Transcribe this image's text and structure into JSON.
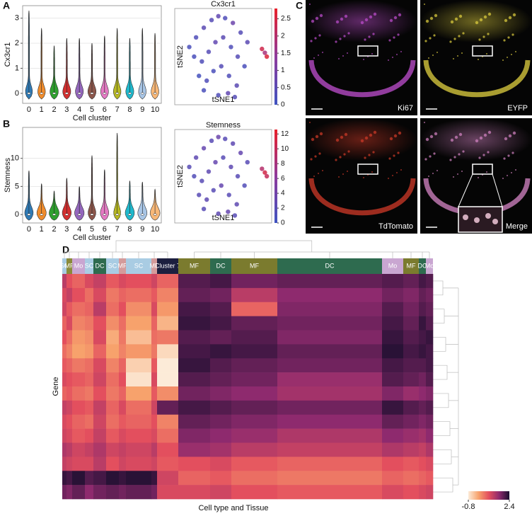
{
  "panel_labels": [
    "A",
    "B",
    "C",
    "D"
  ],
  "chart_data": [
    {
      "type": "violin",
      "ylabel": "Cx3cr1",
      "xlabel": "Cell cluster",
      "categories": [
        "0",
        "1",
        "2",
        "3",
        "4",
        "5",
        "6",
        "7",
        "8",
        "9",
        "10"
      ],
      "values": [
        3.3,
        2.6,
        1.9,
        2.2,
        2.2,
        2.0,
        2.3,
        2.6,
        2.2,
        2.6,
        2.4
      ],
      "colors": [
        "#2f7ab5",
        "#f08c2c",
        "#2fa02f",
        "#d22f2f",
        "#9467bd",
        "#8c564b",
        "#e47ac3",
        "#b7b823",
        "#1fb8cc",
        "#a9c6e6",
        "#f8b878"
      ],
      "ylim": [
        -0.4,
        3.5
      ],
      "yticks": [
        0,
        1,
        2,
        3
      ],
      "grid": true
    },
    {
      "type": "scatter",
      "title": "Cx3cr1",
      "xlabel": "tSNE1",
      "ylabel": "tSNE2",
      "x": [
        15,
        22,
        30,
        38,
        45,
        52,
        60,
        68,
        75,
        20,
        28,
        35,
        42,
        50,
        58,
        65,
        72,
        25,
        33,
        40,
        48,
        56,
        64,
        30,
        45,
        55,
        62,
        90,
        93,
        95
      ],
      "y": [
        60,
        70,
        80,
        88,
        92,
        90,
        85,
        75,
        65,
        50,
        45,
        55,
        65,
        70,
        60,
        50,
        40,
        30,
        25,
        35,
        40,
        30,
        20,
        15,
        10,
        12,
        8,
        58,
        54,
        50
      ],
      "values": [
        0.2,
        0.3,
        0.5,
        0.4,
        0.6,
        0.3,
        0.8,
        0.4,
        0.5,
        0.2,
        0.3,
        0.4,
        0.6,
        0.5,
        0.3,
        0.4,
        0.2,
        0.1,
        0.3,
        0.2,
        0.4,
        0.3,
        0.5,
        0.2,
        0.3,
        0.6,
        0.4,
        2.4,
        1.8,
        2.6
      ],
      "xlim": [
        0,
        100
      ],
      "ylim": [
        0,
        100
      ],
      "clim": [
        0,
        2.8
      ],
      "colorbar_ticks": [
        0,
        0.5,
        1,
        1.5,
        2,
        2.5
      ],
      "colormap": [
        "#3f53c0",
        "#8e3a9c",
        "#e8202a"
      ]
    },
    {
      "type": "violin",
      "ylabel": "Stemness",
      "xlabel": "Cell cluster",
      "categories": [
        "0",
        "1",
        "2",
        "3",
        "4",
        "5",
        "6",
        "7",
        "8",
        "9",
        "10"
      ],
      "values": [
        7.8,
        5.5,
        4.2,
        6.5,
        5.0,
        10.5,
        8.0,
        14.5,
        6.0,
        5.8,
        4.5
      ],
      "colors": [
        "#2f7ab5",
        "#f08c2c",
        "#2fa02f",
        "#d22f2f",
        "#9467bd",
        "#8c564b",
        "#e47ac3",
        "#b7b823",
        "#1fb8cc",
        "#a9c6e6",
        "#f8b878"
      ],
      "ylim": [
        -1.5,
        15.5
      ],
      "yticks": [
        0,
        5,
        10
      ],
      "grid": true
    },
    {
      "type": "scatter",
      "title": "Stemness",
      "xlabel": "tSNE1",
      "ylabel": "tSNE2",
      "x": [
        15,
        22,
        30,
        38,
        45,
        52,
        60,
        68,
        75,
        20,
        28,
        35,
        42,
        50,
        58,
        65,
        72,
        25,
        33,
        40,
        48,
        56,
        64,
        30,
        45,
        55,
        62,
        90,
        93,
        95
      ],
      "y": [
        60,
        70,
        80,
        88,
        92,
        90,
        85,
        75,
        65,
        50,
        45,
        55,
        65,
        70,
        60,
        50,
        40,
        30,
        25,
        35,
        40,
        30,
        20,
        15,
        10,
        12,
        8,
        58,
        54,
        50
      ],
      "values": [
        2,
        2.5,
        3,
        2,
        3.5,
        2,
        2.5,
        3,
        2,
        1.5,
        2,
        2.5,
        3,
        2,
        2.5,
        2,
        1.5,
        2,
        2.5,
        2,
        3,
        2,
        2.5,
        2,
        2.5,
        3,
        2,
        9,
        11,
        10
      ],
      "xlim": [
        0,
        100
      ],
      "ylim": [
        0,
        100
      ],
      "clim": [
        0,
        12.6
      ],
      "colorbar_ticks": [
        0,
        2,
        4,
        6,
        8,
        10,
        12
      ],
      "colormap": [
        "#3f53c0",
        "#8e3a9c",
        "#e8202a"
      ]
    },
    {
      "type": "heatmap",
      "xlabel": "Cell type and Tissue",
      "ylabel": "Gene",
      "groups": [
        {
          "label": "SC",
          "color": "#a9cce3"
        },
        {
          "label": "MF",
          "color": "#8a8a3a"
        },
        {
          "label": "Mo",
          "color": "#c9a6d1"
        },
        {
          "label": "SC",
          "color": "#a9cce3"
        },
        {
          "label": "DC",
          "color": "#2e6b4f"
        },
        {
          "label": "SC",
          "color": "#a9cce3"
        },
        {
          "label": "MF",
          "color": "#d49b9b"
        },
        {
          "label": "SC",
          "color": "#a9cce3"
        },
        {
          "label": "MF",
          "color": "#d49b9b"
        },
        {
          "label": "Cluster 7",
          "color": "#1c1f3f"
        },
        {
          "label": "MF",
          "color": "#7b7b2e"
        },
        {
          "label": "DC",
          "color": "#2e6b4f"
        },
        {
          "label": "MF",
          "color": "#7b7b2e"
        },
        {
          "label": "DC",
          "color": "#2e6b4f"
        },
        {
          "label": "Mo",
          "color": "#c9a6d1"
        },
        {
          "label": "MF",
          "color": "#7b7b2e"
        },
        {
          "label": "DC",
          "color": "#2e6b4f"
        },
        {
          "label": "Mo",
          "color": "#c9a6d1"
        }
      ],
      "values": [
        [
          1.2,
          0.8,
          0.6,
          0.9,
          1.1,
          0.7,
          0.9,
          0.8,
          1.0,
          0.6,
          2.0,
          2.1,
          1.8,
          1.9,
          2.0,
          1.9,
          2.1,
          2.0
        ],
        [
          0.9,
          1.1,
          0.8,
          0.5,
          0.9,
          0.4,
          0.6,
          0.5,
          0.7,
          0.3,
          1.9,
          1.8,
          1.2,
          1.6,
          1.8,
          1.7,
          1.9,
          1.8
        ],
        [
          1.0,
          0.7,
          0.5,
          0.6,
          1.2,
          0.5,
          0.8,
          0.2,
          0.9,
          0.1,
          2.1,
          2.0,
          0.6,
          1.7,
          2.0,
          1.8,
          2.0,
          1.9
        ],
        [
          0.6,
          0.9,
          0.3,
          0.4,
          0.8,
          0.2,
          0.5,
          0.0,
          0.6,
          -0.2,
          2.2,
          2.1,
          1.9,
          1.8,
          2.1,
          1.9,
          2.2,
          2.0
        ],
        [
          0.8,
          0.5,
          0.1,
          0.2,
          0.9,
          -0.1,
          0.4,
          -0.3,
          0.5,
          0.4,
          2.0,
          1.9,
          2.0,
          1.7,
          2.2,
          2.0,
          2.1,
          2.2
        ],
        [
          0.5,
          0.3,
          0.0,
          0.1,
          0.6,
          0.0,
          0.3,
          0.1,
          0.4,
          -0.6,
          2.1,
          2.2,
          2.1,
          1.9,
          2.3,
          2.1,
          2.2,
          2.1
        ],
        [
          0.7,
          0.6,
          0.4,
          0.5,
          0.9,
          0.3,
          0.6,
          -0.5,
          0.7,
          -0.8,
          2.2,
          2.0,
          1.9,
          1.8,
          2.1,
          2.0,
          2.0,
          2.1
        ],
        [
          0.9,
          0.8,
          0.7,
          0.6,
          1.0,
          0.5,
          0.8,
          -0.7,
          0.9,
          -0.8,
          2.0,
          1.9,
          1.8,
          1.5,
          2.0,
          1.9,
          1.8,
          2.0
        ],
        [
          0.6,
          0.7,
          0.5,
          0.4,
          0.8,
          0.4,
          0.6,
          0.0,
          0.7,
          0.2,
          1.8,
          1.7,
          1.6,
          1.4,
          1.7,
          1.5,
          1.6,
          1.7
        ],
        [
          1.1,
          1.0,
          0.8,
          0.7,
          1.1,
          0.6,
          0.9,
          0.5,
          1.0,
          1.9,
          2.1,
          2.0,
          1.9,
          1.8,
          2.2,
          2.0,
          1.9,
          2.0
        ],
        [
          0.9,
          0.8,
          0.6,
          0.5,
          1.0,
          0.5,
          0.7,
          0.6,
          0.8,
          0.3,
          1.9,
          1.8,
          1.7,
          1.6,
          1.9,
          1.8,
          1.7,
          1.8
        ],
        [
          1.0,
          0.9,
          0.7,
          0.8,
          1.1,
          0.7,
          0.9,
          0.8,
          0.9,
          0.5,
          1.7,
          1.6,
          1.5,
          1.3,
          1.6,
          1.5,
          1.4,
          1.6
        ],
        [
          1.3,
          1.2,
          1.0,
          1.1,
          1.3,
          1.0,
          1.1,
          1.0,
          1.2,
          0.8,
          1.5,
          1.4,
          1.2,
          1.1,
          1.3,
          1.2,
          1.1,
          1.3
        ],
        [
          1.1,
          1.0,
          0.9,
          0.9,
          1.2,
          0.8,
          1.0,
          0.9,
          1.0,
          0.7,
          0.8,
          0.9,
          0.7,
          0.6,
          0.8,
          0.7,
          0.8,
          0.9
        ],
        [
          2.2,
          2.1,
          2.3,
          2.0,
          2.1,
          2.3,
          2.2,
          2.3,
          2.2,
          1.0,
          0.6,
          0.7,
          0.5,
          0.4,
          0.6,
          0.5,
          0.6,
          0.7
        ],
        [
          1.8,
          1.7,
          1.9,
          1.6,
          1.8,
          1.9,
          1.8,
          1.9,
          1.8,
          0.9,
          0.9,
          1.0,
          0.8,
          0.7,
          0.9,
          0.8,
          0.9,
          1.0
        ]
      ],
      "clim": [
        -0.8,
        2.4
      ],
      "colorbar_ticks": [
        -0.8,
        2.4
      ],
      "colormap": [
        "#fcebd8",
        "#f7a26c",
        "#e34f5e",
        "#8e2a6e",
        "#1a0e2e"
      ]
    }
  ],
  "micrographs": [
    {
      "label": "Ki67",
      "color": "#c04fd0"
    },
    {
      "label": "EYFP",
      "color": "#e0d040"
    },
    {
      "label": "TdTomato",
      "color": "#d03a28"
    },
    {
      "label": "Merge",
      "color": "#d585c5"
    }
  ]
}
